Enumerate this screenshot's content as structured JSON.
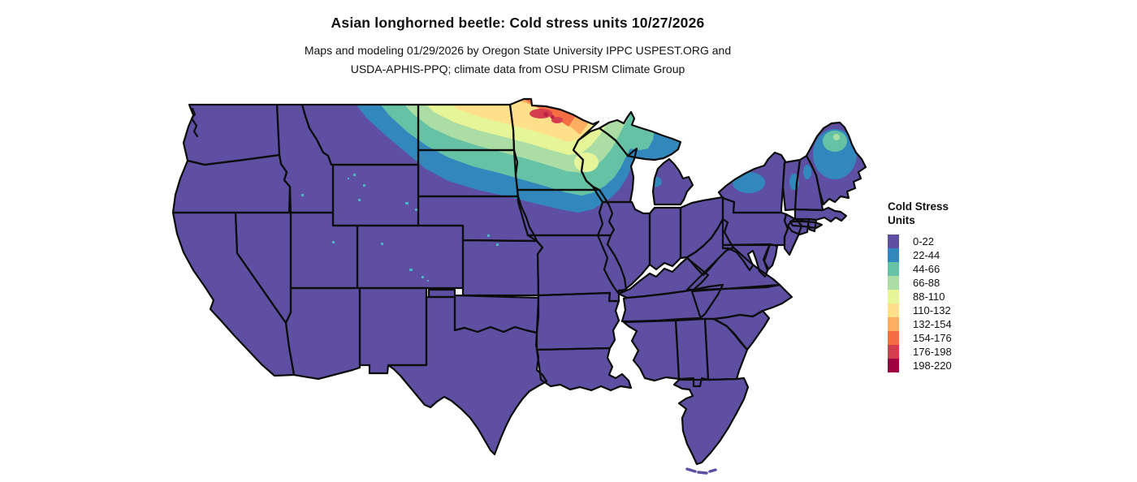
{
  "header": {
    "title": "Asian longhorned beetle: Cold stress units 10/27/2026",
    "subtitle_line1": "Maps and modeling 01/29/2026 by Oregon State University IPPC USPEST.ORG and",
    "subtitle_line2": "USDA-APHIS-PPQ; climate data from OSU PRISM Climate Group"
  },
  "legend": {
    "title_line1": "Cold Stress",
    "title_line2": "Units",
    "items": [
      {
        "label": "0-22",
        "color": "#5e4fa2"
      },
      {
        "label": "22-44",
        "color": "#3288bd"
      },
      {
        "label": "44-66",
        "color": "#66c2a5"
      },
      {
        "label": "66-88",
        "color": "#abdda4"
      },
      {
        "label": "88-110",
        "color": "#e6f598"
      },
      {
        "label": "110-132",
        "color": "#fee08b"
      },
      {
        "label": "132-154",
        "color": "#fdae61"
      },
      {
        "label": "154-176",
        "color": "#f46d43"
      },
      {
        "label": "176-198",
        "color": "#d53e4f"
      },
      {
        "label": "198-220",
        "color": "#9e0142"
      }
    ]
  },
  "map_data": {
    "type": "raster-choropleth-us-map",
    "region": "Conterminous United States with state borders",
    "variable": "Cold stress units (Asian longhorned beetle)",
    "map_date": "10/27/2026",
    "bins": [
      "0-22",
      "22-44",
      "44-66",
      "66-88",
      "88-110",
      "110-132",
      "132-154",
      "154-176",
      "176-198",
      "198-220"
    ],
    "bin_colors": [
      "#5e4fa2",
      "#3288bd",
      "#66c2a5",
      "#abdda4",
      "#e6f598",
      "#fee08b",
      "#fdae61",
      "#f46d43",
      "#d53e4f",
      "#9e0142"
    ],
    "base_fill_color": "#5e4fa2",
    "state_border_color": "#0d0d0d",
    "background_color": "#ffffff",
    "observations": [
      "Most of the conterminous US is in the lowest class 0-22",
      "Values rise northward across northeast Montana, North Dakota, South Dakota, Minnesota, Wisconsin and upper Michigan",
      "Hotspot of highest values (154-198) in far northern Minnesota near Lake Superior",
      "Moderate patches (22-66) in the Adirondacks of New York, northern Vermont / New Hampshire and northern Maine",
      "Scattered small 22-66 speckles in the mountain west (Wyoming, Colorado, Utah, Idaho)"
    ]
  }
}
